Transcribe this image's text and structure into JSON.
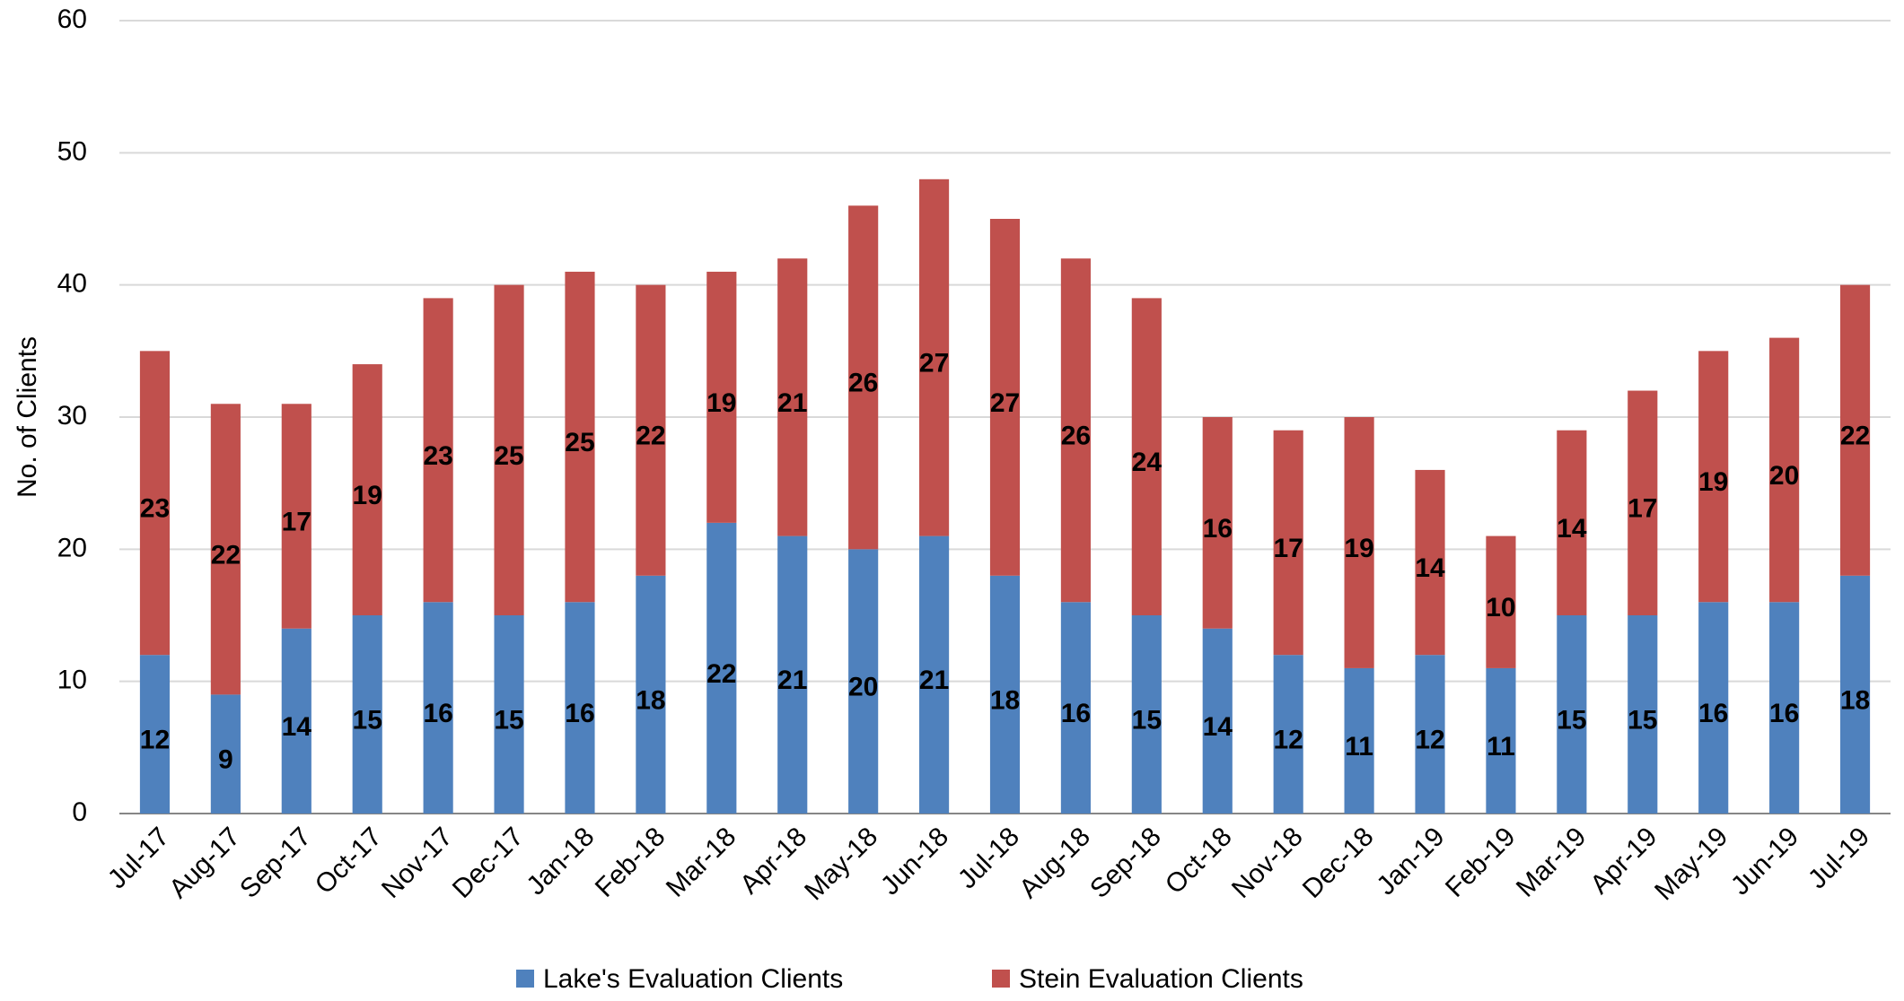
{
  "chart_data": {
    "type": "stacked_bar",
    "y_label": "No. of Clients",
    "categories": [
      "Jul-17",
      "Aug-17",
      "Sep-17",
      "Oct-17",
      "Nov-17",
      "Dec-17",
      "Jan-18",
      "Feb-18",
      "Mar-18",
      "Apr-18",
      "May-18",
      "Jun-18",
      "Jul-18",
      "Aug-18",
      "Sep-18",
      "Oct-18",
      "Nov-18",
      "Dec-18",
      "Jan-19",
      "Feb-19",
      "Mar-19",
      "Apr-19",
      "May-19",
      "Jun-19",
      "Jul-19"
    ],
    "series": [
      {
        "name": "Lake's Evaluation Clients",
        "color": "#4f81bd",
        "values": [
          12,
          9,
          14,
          15,
          16,
          15,
          16,
          18,
          22,
          21,
          20,
          21,
          18,
          16,
          15,
          14,
          12,
          11,
          12,
          11,
          15,
          15,
          16,
          16,
          18
        ]
      },
      {
        "name": "Stein Evaluation Clients",
        "color": "#c0504d",
        "values": [
          23,
          22,
          17,
          19,
          23,
          25,
          25,
          22,
          19,
          21,
          26,
          27,
          27,
          26,
          24,
          16,
          17,
          19,
          14,
          10,
          14,
          17,
          19,
          20,
          22
        ]
      }
    ],
    "ylim": [
      0,
      60
    ],
    "yticks": [
      0,
      10,
      20,
      30,
      40,
      50,
      60
    ],
    "grid": true,
    "legend": "bottom"
  }
}
